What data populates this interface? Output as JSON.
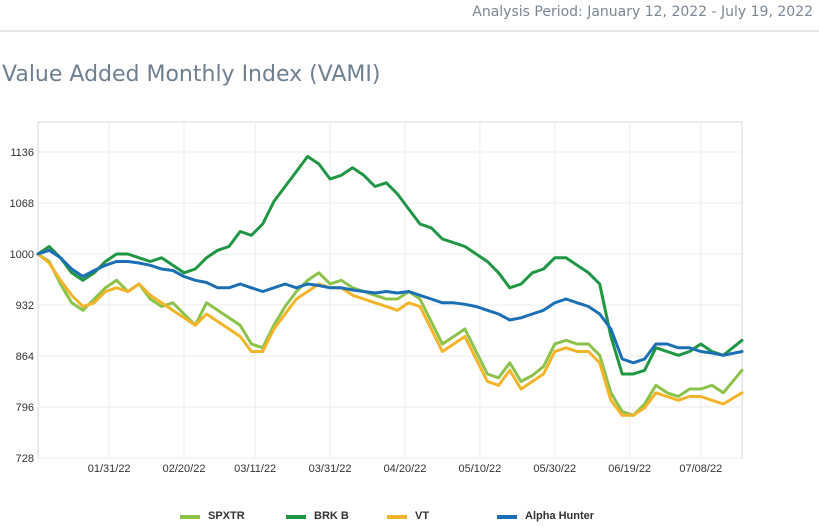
{
  "header": {
    "analysis_period": "Analysis Period: January 12, 2022 - July 19, 2022"
  },
  "title": "Value Added Monthly Index (VAMI)",
  "chart_data": {
    "type": "line",
    "title": "Value Added Monthly Index (VAMI)",
    "xlabel": "",
    "ylabel": "",
    "ylim": [
      728,
      1136
    ],
    "yticks": [
      "728",
      "796",
      "864",
      "932",
      "1000",
      "1068",
      "1136"
    ],
    "ytick_values": [
      728,
      796,
      864,
      932,
      1000,
      1068,
      1136
    ],
    "x_start": "2022-01-12",
    "x_end": "2022-07-19",
    "xticks": [
      "01/31/22",
      "02/20/22",
      "03/11/22",
      "03/31/22",
      "04/20/22",
      "05/10/22",
      "05/30/22",
      "06/19/22",
      "07/08/22"
    ],
    "xtick_dates": [
      "2022-01-31",
      "2022-02-20",
      "2022-03-11",
      "2022-03-31",
      "2022-04-20",
      "2022-05-10",
      "2022-05-30",
      "2022-06-19",
      "2022-07-08"
    ],
    "grid": true,
    "legend": "bottom",
    "x": [
      "2022-01-12",
      "2022-01-15",
      "2022-01-18",
      "2022-01-21",
      "2022-01-24",
      "2022-01-27",
      "2022-01-30",
      "2022-02-02",
      "2022-02-05",
      "2022-02-08",
      "2022-02-11",
      "2022-02-14",
      "2022-02-17",
      "2022-02-20",
      "2022-02-23",
      "2022-02-26",
      "2022-03-01",
      "2022-03-04",
      "2022-03-07",
      "2022-03-10",
      "2022-03-13",
      "2022-03-16",
      "2022-03-19",
      "2022-03-22",
      "2022-03-25",
      "2022-03-28",
      "2022-03-31",
      "2022-04-03",
      "2022-04-06",
      "2022-04-09",
      "2022-04-12",
      "2022-04-15",
      "2022-04-18",
      "2022-04-21",
      "2022-04-24",
      "2022-04-27",
      "2022-04-30",
      "2022-05-03",
      "2022-05-06",
      "2022-05-09",
      "2022-05-12",
      "2022-05-15",
      "2022-05-18",
      "2022-05-21",
      "2022-05-24",
      "2022-05-27",
      "2022-05-30",
      "2022-06-02",
      "2022-06-05",
      "2022-06-08",
      "2022-06-11",
      "2022-06-14",
      "2022-06-17",
      "2022-06-20",
      "2022-06-23",
      "2022-06-26",
      "2022-06-29",
      "2022-07-02",
      "2022-07-05",
      "2022-07-08",
      "2022-07-11",
      "2022-07-14",
      "2022-07-19"
    ],
    "series": [
      {
        "name": "SPXTR",
        "color": "#8bc34a",
        "values": [
          1000,
          990,
          960,
          935,
          925,
          940,
          955,
          965,
          950,
          960,
          940,
          930,
          935,
          920,
          905,
          935,
          925,
          915,
          905,
          880,
          875,
          905,
          930,
          950,
          965,
          975,
          960,
          965,
          955,
          950,
          945,
          940,
          940,
          950,
          940,
          910,
          880,
          890,
          900,
          870,
          840,
          835,
          855,
          830,
          838,
          850,
          880,
          885,
          880,
          880,
          865,
          815,
          790,
          785,
          800,
          825,
          815,
          810,
          820,
          820,
          825,
          815,
          845
        ]
      },
      {
        "name": "BRK B",
        "color": "#1e9642",
        "values": [
          1000,
          1010,
          995,
          975,
          965,
          975,
          990,
          1000,
          1000,
          995,
          990,
          995,
          985,
          975,
          980,
          995,
          1005,
          1010,
          1030,
          1025,
          1040,
          1070,
          1090,
          1110,
          1130,
          1120,
          1100,
          1105,
          1115,
          1105,
          1090,
          1095,
          1080,
          1060,
          1040,
          1035,
          1020,
          1015,
          1010,
          1000,
          990,
          975,
          955,
          960,
          975,
          980,
          995,
          995,
          985,
          975,
          960,
          890,
          840,
          840,
          845,
          875,
          870,
          865,
          870,
          880,
          870,
          865,
          885
        ]
      },
      {
        "name": "VT",
        "color": "#f4b42a",
        "values": [
          1000,
          988,
          965,
          945,
          930,
          935,
          950,
          955,
          950,
          960,
          945,
          935,
          925,
          915,
          905,
          920,
          910,
          900,
          890,
          870,
          870,
          900,
          920,
          940,
          950,
          960,
          955,
          955,
          945,
          940,
          935,
          930,
          925,
          935,
          930,
          900,
          870,
          880,
          890,
          860,
          830,
          825,
          845,
          820,
          830,
          840,
          870,
          875,
          870,
          870,
          855,
          805,
          785,
          785,
          795,
          815,
          810,
          805,
          810,
          810,
          805,
          800,
          815
        ]
      },
      {
        "name": "Alpha Hunter",
        "color": "#1b6fb5",
        "values": [
          1000,
          1005,
          995,
          980,
          970,
          978,
          985,
          990,
          990,
          988,
          985,
          980,
          978,
          970,
          965,
          962,
          955,
          955,
          960,
          955,
          950,
          955,
          960,
          955,
          960,
          958,
          955,
          955,
          952,
          950,
          948,
          950,
          948,
          950,
          945,
          940,
          935,
          935,
          933,
          930,
          925,
          920,
          912,
          915,
          920,
          925,
          935,
          940,
          935,
          930,
          920,
          900,
          860,
          855,
          860,
          880,
          880,
          875,
          875,
          870,
          868,
          865,
          870
        ]
      }
    ]
  },
  "legend": [
    {
      "label": "SPXTR",
      "color": "#8bc34a"
    },
    {
      "label": "BRK B",
      "color": "#1e9642"
    },
    {
      "label": "VT",
      "color": "#f4b42a"
    },
    {
      "label": "Alpha Hunter",
      "color": "#1b6fb5"
    }
  ]
}
